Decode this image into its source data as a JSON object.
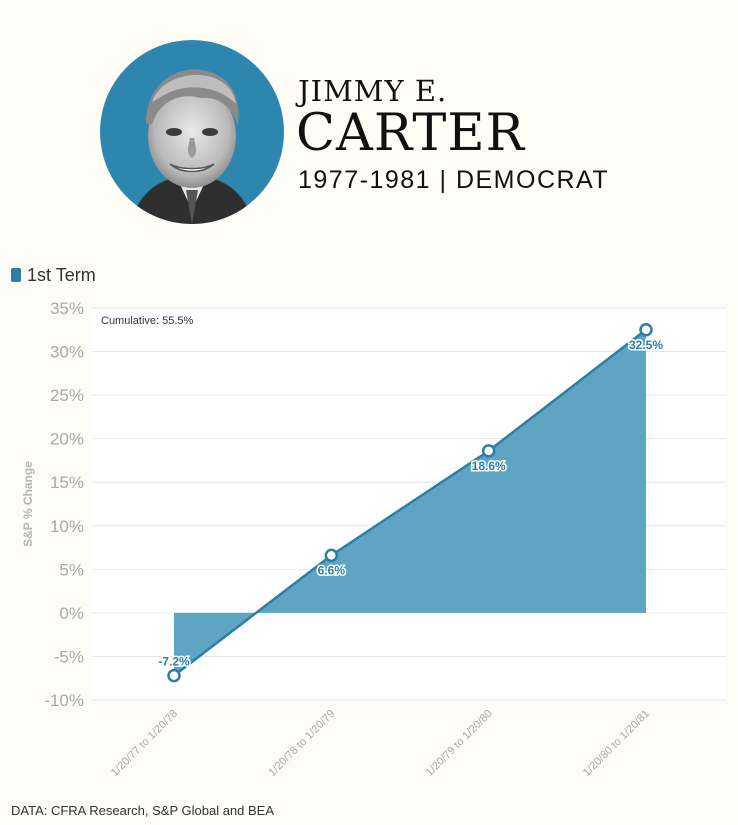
{
  "header": {
    "first_name": "JIMMY E.",
    "last_name": "CARTER",
    "term_line": "1977-1981 | DEMOCRAT"
  },
  "legend": {
    "series_label": "1st Term",
    "color": "#2b7fa6"
  },
  "colors": {
    "area_fill": "#5fa4c3",
    "line": "#2b7fa6",
    "background": "#fdfcf6"
  },
  "chart_data": {
    "type": "area",
    "categories": [
      "1/20/77 to 1/20/78",
      "1/20/78 to 1/20/79",
      "1/20/79 to 1/20/80",
      "1/20/80 to 1/20/81"
    ],
    "series": [
      {
        "name": "1st Term",
        "values": [
          -7.2,
          6.6,
          18.6,
          32.5
        ]
      }
    ],
    "data_labels": [
      "-7.2%",
      "6.6%",
      "18.6%",
      "32.5%"
    ],
    "annotation": "Cumulative: 55.5%",
    "ylabel": "S&P % Change",
    "xlabel": "",
    "ylim": [
      -10,
      35
    ],
    "y_ticks": [
      35,
      30,
      25,
      20,
      15,
      10,
      5,
      0,
      -5,
      -10
    ],
    "y_tick_labels": [
      "35%",
      "30%",
      "25%",
      "20%",
      "15%",
      "10%",
      "5%",
      "0%",
      "-5%",
      "-10%"
    ],
    "grid": true,
    "legend": "top-left"
  },
  "source": "DATA: CFRA Research, S&P Global and BEA"
}
